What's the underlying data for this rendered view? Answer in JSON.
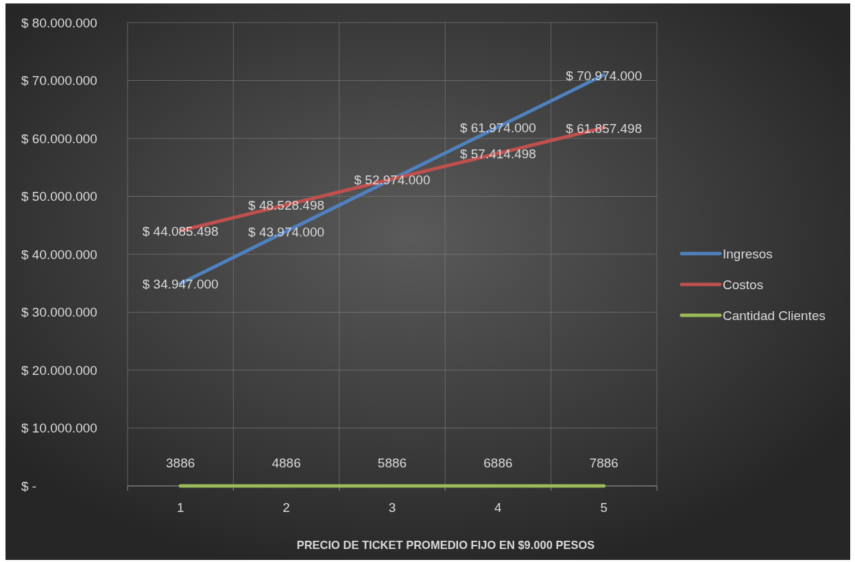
{
  "chart_data": {
    "type": "line",
    "xlabel": "PRECIO DE TICKET PROMEDIO FIJO EN $9.000 PESOS",
    "categories": [
      "1",
      "2",
      "3",
      "4",
      "5"
    ],
    "series": [
      {
        "name": "Ingresos",
        "color": "#4f81bd",
        "values": [
          34947000,
          43974000,
          52974000,
          61974000,
          70974000
        ],
        "value_labels": [
          "$ 34.947.000",
          "$ 43.974.000",
          "$ 52.974.000",
          "$ 61.974.000",
          "$ 70.974.000"
        ]
      },
      {
        "name": "Costos",
        "color": "#c0504d",
        "values": [
          44085498,
          48528498,
          53000000,
          57414498,
          61857498
        ],
        "value_labels": [
          "$ 44.085.498",
          "$ 48.528.498",
          null,
          "$ 57.414.498",
          "$ 61.857.498"
        ]
      },
      {
        "name": "Cantidad Clientes",
        "color": "#9bbb59",
        "values": [
          3886,
          4886,
          5886,
          6886,
          7886
        ],
        "value_labels": [
          "3886",
          "4886",
          "5886",
          "6886",
          "7886"
        ]
      }
    ],
    "ylim": [
      0,
      80000000
    ],
    "yticks": [
      {
        "value": 0,
        "label": "$ -"
      },
      {
        "value": 10000000,
        "label": "$ 10.000.000"
      },
      {
        "value": 20000000,
        "label": "$ 20.000.000"
      },
      {
        "value": 30000000,
        "label": "$ 30.000.000"
      },
      {
        "value": 40000000,
        "label": "$ 40.000.000"
      },
      {
        "value": 50000000,
        "label": "$ 50.000.000"
      },
      {
        "value": 60000000,
        "label": "$ 60.000.000"
      },
      {
        "value": 70000000,
        "label": "$ 70.000.000"
      },
      {
        "value": 80000000,
        "label": "$ 80.000.000"
      }
    ],
    "grid": true,
    "legend": "right"
  }
}
